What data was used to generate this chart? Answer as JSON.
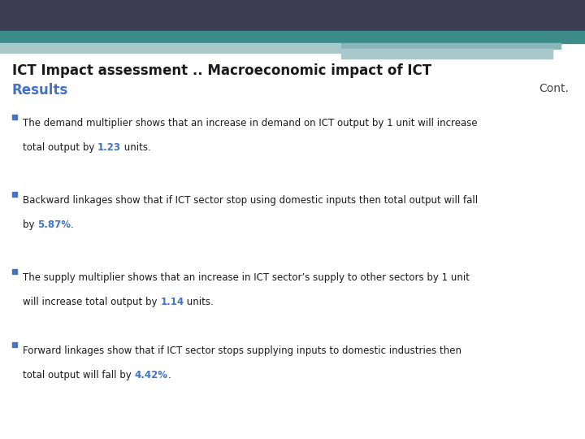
{
  "title_line1": "ICT Impact assessment .. Macroeconomic impact of ICT",
  "title_line2": "Results",
  "cont_text": "Cont.",
  "header_dark_color": "#3d3d52",
  "header_teal_color": "#3d8a8a",
  "header_light_teal": "#a8c8cc",
  "header_mid_teal": "#89b5bb",
  "highlight_color": "#4472c4",
  "title_color": "#1a1a1a",
  "results_color": "#4472c4",
  "cont_color": "#444444",
  "bg_color": "#ffffff",
  "bullet_square_color": "#4472c4",
  "bullets": [
    {
      "line1": "The demand multiplier shows that an increase in demand on ICT output by 1 unit will increase",
      "line2_before": "total output by ",
      "highlight": "1.23",
      "line2_after": " units."
    },
    {
      "line1": "Backward linkages show that if ICT sector stop using domestic inputs then total output will fall",
      "line2_before": "by ",
      "highlight": "5.87%",
      "line2_after": "."
    },
    {
      "line1": "The supply multiplier shows that an increase in ICT sector’s supply to other sectors by 1 unit",
      "line2_before": "will increase total output by ",
      "highlight": "1.14",
      "line2_after": " units."
    },
    {
      "line1": "Forward linkages show that if ICT sector stops supplying inputs to domestic industries then",
      "line2_before": "total output will fall by ",
      "highlight": "4.42%",
      "line2_after": "."
    }
  ]
}
